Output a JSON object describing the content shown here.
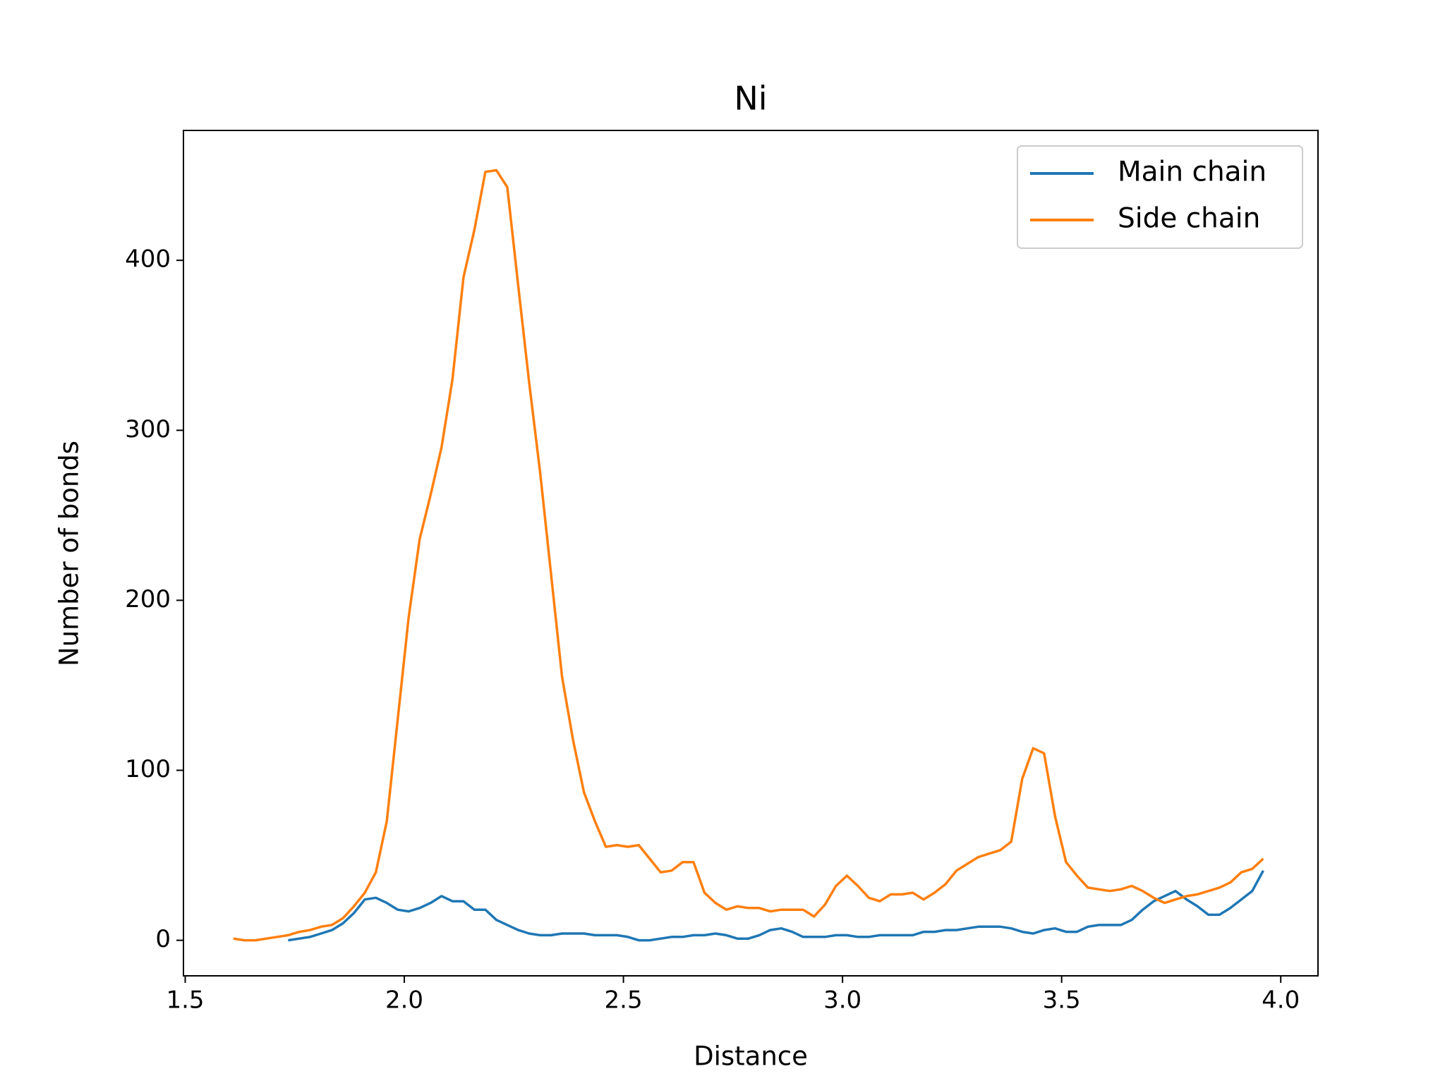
{
  "chart_data": {
    "type": "line",
    "title": "Ni",
    "xlabel": "Distance",
    "ylabel": "Number of bonds",
    "x": [
      1.61,
      1.635,
      1.66,
      1.685,
      1.71,
      1.735,
      1.76,
      1.785,
      1.81,
      1.835,
      1.86,
      1.885,
      1.91,
      1.935,
      1.96,
      1.985,
      2.01,
      2.035,
      2.06,
      2.085,
      2.11,
      2.135,
      2.16,
      2.185,
      2.21,
      2.235,
      2.26,
      2.285,
      2.31,
      2.335,
      2.36,
      2.385,
      2.41,
      2.435,
      2.46,
      2.485,
      2.51,
      2.535,
      2.56,
      2.585,
      2.61,
      2.635,
      2.66,
      2.685,
      2.71,
      2.735,
      2.76,
      2.785,
      2.81,
      2.835,
      2.86,
      2.885,
      2.91,
      2.935,
      2.96,
      2.985,
      3.01,
      3.035,
      3.06,
      3.085,
      3.11,
      3.135,
      3.16,
      3.185,
      3.21,
      3.235,
      3.26,
      3.285,
      3.31,
      3.335,
      3.36,
      3.385,
      3.41,
      3.435,
      3.46,
      3.485,
      3.51,
      3.535,
      3.56,
      3.585,
      3.61,
      3.635,
      3.66,
      3.685,
      3.71,
      3.735,
      3.76,
      3.785,
      3.81,
      3.835,
      3.86,
      3.885,
      3.91,
      3.935,
      3.96
    ],
    "series": [
      {
        "name": "Main chain",
        "color": "#1f77b4",
        "values": [
          null,
          null,
          null,
          null,
          null,
          0,
          1,
          2,
          4,
          6,
          10,
          16,
          24,
          25,
          22,
          18,
          17,
          19,
          22,
          26,
          23,
          23,
          18,
          18,
          12,
          9,
          6,
          4,
          3,
          3,
          4,
          4,
          4,
          3,
          3,
          3,
          2,
          0,
          0,
          1,
          2,
          2,
          3,
          3,
          4,
          3,
          1,
          1,
          3,
          6,
          7,
          5,
          2,
          2,
          2,
          3,
          3,
          2,
          2,
          3,
          3,
          3,
          3,
          5,
          5,
          6,
          6,
          7,
          8,
          8,
          8,
          7,
          5,
          4,
          6,
          7,
          5,
          5,
          8,
          9,
          9,
          9,
          12,
          18,
          23,
          26,
          29,
          24,
          20,
          15,
          15,
          19,
          24,
          29,
          41
        ]
      },
      {
        "name": "Side chain",
        "color": "#ff7f0e",
        "values": [
          1,
          0,
          0,
          1,
          2,
          3,
          5,
          6,
          8,
          9,
          13,
          20,
          28,
          40,
          70,
          130,
          190,
          236,
          262,
          290,
          330,
          390,
          418,
          452,
          453,
          443,
          385,
          328,
          275,
          215,
          155,
          118,
          87,
          70,
          55,
          56,
          55,
          56,
          48,
          40,
          41,
          46,
          46,
          28,
          22,
          18,
          20,
          19,
          19,
          17,
          18,
          18,
          18,
          14,
          21,
          32,
          38,
          32,
          25,
          23,
          27,
          27,
          28,
          24,
          28,
          33,
          41,
          45,
          49,
          51,
          53,
          58,
          95,
          113,
          110,
          73,
          46,
          38,
          31,
          30,
          29,
          30,
          32,
          29,
          25,
          22,
          24,
          26,
          27,
          29,
          31,
          34,
          40,
          42,
          48
        ]
      }
    ],
    "xlim": [
      1.496,
      4.085
    ],
    "ylim": [
      -20.9,
      476.4
    ],
    "xticks": [
      1.5,
      {
        "value": 2,
        "label": "2.0"
      },
      2.5,
      {
        "value": 3,
        "label": "3.0"
      },
      3.5,
      {
        "value": 4,
        "label": "4.0"
      }
    ],
    "yticks": [
      0,
      100,
      200,
      300,
      400
    ],
    "grid": false,
    "legend": "upper right"
  }
}
